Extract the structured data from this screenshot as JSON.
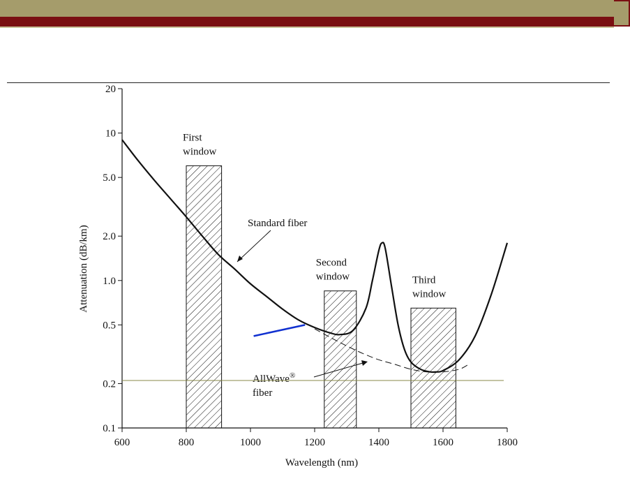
{
  "chart_data": {
    "type": "line",
    "xlabel": "Wavelength (nm)",
    "ylabel": "Attenuation (dB/km)",
    "x_ticks": [
      600,
      800,
      1000,
      1200,
      1400,
      1600,
      1800
    ],
    "y_ticks": [
      "0.1",
      "0.2",
      "0.5",
      "1.0",
      "2.0",
      "5.0",
      "10",
      "20"
    ],
    "y_tick_values": [
      0.1,
      0.2,
      0.5,
      1.0,
      2.0,
      5.0,
      10,
      20
    ],
    "xlim": [
      600,
      1800
    ],
    "ylim": [
      0.1,
      20
    ],
    "y_scale": "log",
    "series": [
      {
        "name": "Standard fiber",
        "style": "solid",
        "x": [
          600,
          650,
          700,
          750,
          800,
          850,
          900,
          950,
          1000,
          1050,
          1100,
          1150,
          1200,
          1250,
          1280,
          1320,
          1360,
          1380,
          1400,
          1410,
          1420,
          1440,
          1460,
          1480,
          1500,
          1530,
          1560,
          1580,
          1600,
          1650,
          1700,
          1750,
          1800
        ],
        "y": [
          9.0,
          6.5,
          4.8,
          3.6,
          2.7,
          2.0,
          1.5,
          1.2,
          0.95,
          0.78,
          0.64,
          0.54,
          0.48,
          0.44,
          0.43,
          0.46,
          0.65,
          1.0,
          1.6,
          1.8,
          1.65,
          0.9,
          0.5,
          0.34,
          0.28,
          0.25,
          0.24,
          0.24,
          0.245,
          0.29,
          0.42,
          0.8,
          1.8
        ]
      },
      {
        "name": "AllWave® fiber",
        "style": "dashed",
        "x": [
          1200,
          1250,
          1300,
          1350,
          1400,
          1450,
          1500,
          1550,
          1600,
          1650,
          1680
        ],
        "y": [
          0.47,
          0.41,
          0.36,
          0.32,
          0.29,
          0.27,
          0.25,
          0.24,
          0.24,
          0.25,
          0.27
        ]
      }
    ],
    "windows": [
      {
        "label_line1": "First",
        "label_line2": "window",
        "x_start": 800,
        "x_end": 910,
        "y_top": 6.0
      },
      {
        "label_line1": "Second",
        "label_line2": "window",
        "x_start": 1230,
        "x_end": 1330,
        "y_top": 0.85
      },
      {
        "label_line1": "Third",
        "label_line2": "window",
        "x_start": 1500,
        "x_end": 1640,
        "y_top": 0.65
      }
    ],
    "annotations": {
      "standard": "Standard fiber",
      "allwave_line1": "AllWave",
      "allwave_sup": "®",
      "allwave_line2": "fiber"
    },
    "overlays": {
      "reference_line_y": 0.21,
      "reference_line_color": "#8a8a4a",
      "blue_segment": {
        "x": [
          1010,
          1170
        ],
        "y": [
          0.42,
          0.5
        ],
        "color": "#1030d0"
      }
    },
    "grid": false,
    "legend": "none"
  },
  "colors": {
    "header_olive": "#a59c6b",
    "header_red": "#7a0f12"
  }
}
